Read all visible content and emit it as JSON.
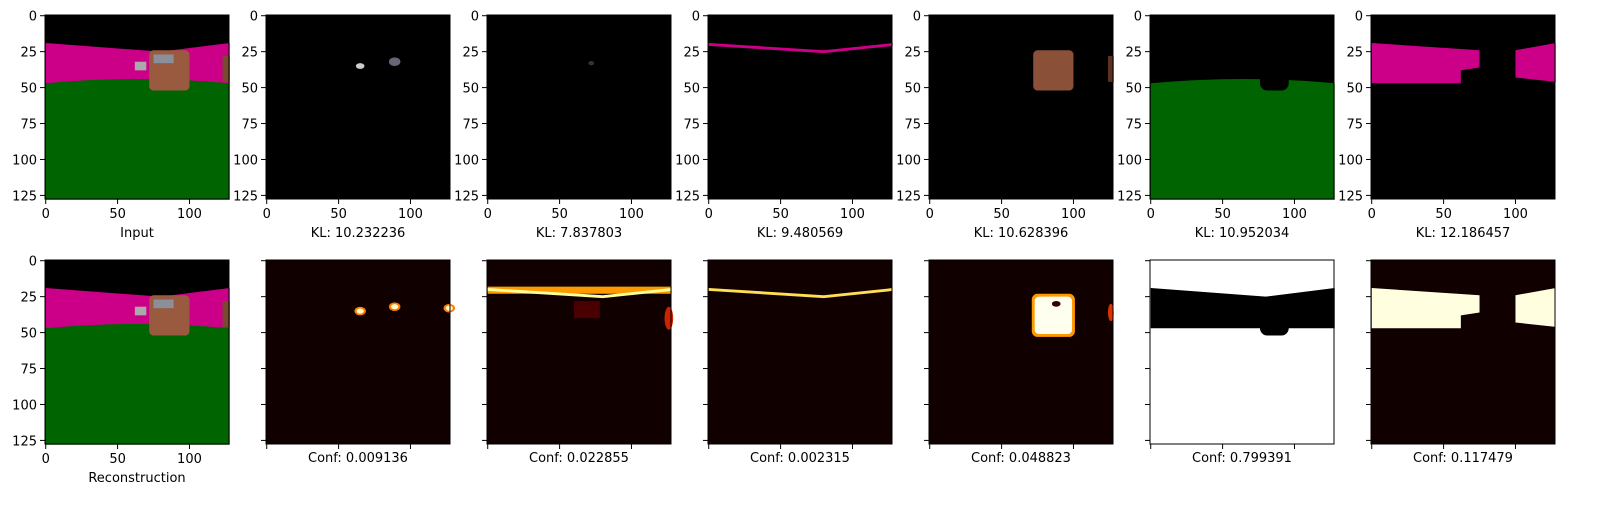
{
  "axes": {
    "xlim": [
      -0.5,
      127.5
    ],
    "ylim": [
      127.5,
      -0.5
    ],
    "xticks": [
      0,
      50,
      100
    ],
    "yticks": [
      0,
      25,
      50,
      75,
      100,
      125
    ]
  },
  "rows": [
    {
      "panels": [
        {
          "label": "Input"
        },
        {
          "label": "KL: 10.232236"
        },
        {
          "label": "KL: 7.837803"
        },
        {
          "label": "KL: 9.480569"
        },
        {
          "label": "KL: 10.628396"
        },
        {
          "label": "KL: 10.952034"
        },
        {
          "label": "KL: 12.186457"
        }
      ]
    },
    {
      "panels": [
        {
          "label": "Reconstruction"
        },
        {
          "label": "Conf: 0.009136"
        },
        {
          "label": "Conf: 0.022855"
        },
        {
          "label": "Conf: 0.002315"
        },
        {
          "label": "Conf: 0.048823"
        },
        {
          "label": "Conf: 0.799391"
        },
        {
          "label": "Conf: 0.117479"
        }
      ]
    }
  ]
}
